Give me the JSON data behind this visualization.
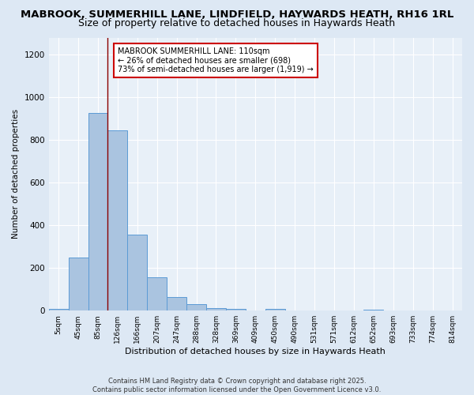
{
  "title": "MABROOK, SUMMERHILL LANE, LINDFIELD, HAYWARDS HEATH, RH16 1RL",
  "subtitle": "Size of property relative to detached houses in Haywards Heath",
  "xlabel": "Distribution of detached houses by size in Haywards Heath",
  "ylabel": "Number of detached properties",
  "bar_labels": [
    "5sqm",
    "45sqm",
    "85sqm",
    "126sqm",
    "166sqm",
    "207sqm",
    "247sqm",
    "288sqm",
    "328sqm",
    "369sqm",
    "409sqm",
    "450sqm",
    "490sqm",
    "531sqm",
    "571sqm",
    "612sqm",
    "652sqm",
    "693sqm",
    "733sqm",
    "774sqm",
    "814sqm"
  ],
  "bar_values": [
    8,
    248,
    928,
    845,
    358,
    158,
    62,
    32,
    13,
    8,
    0,
    10,
    0,
    0,
    0,
    0,
    5,
    0,
    0,
    0,
    0
  ],
  "bar_color": "#aac4e0",
  "bar_edgecolor": "#5b9bd5",
  "vline_x": 2.5,
  "vline_color": "#8b0000",
  "ylim": [
    0,
    1280
  ],
  "yticks": [
    0,
    200,
    400,
    600,
    800,
    1000,
    1200
  ],
  "annotation_text": "MABROOK SUMMERHILL LANE: 110sqm\n← 26% of detached houses are smaller (698)\n73% of semi-detached houses are larger (1,919) →",
  "footnote": "Contains HM Land Registry data © Crown copyright and database right 2025.\nContains public sector information licensed under the Open Government Licence v3.0.",
  "bg_color": "#dde8f4",
  "plot_bg_color": "#e8f0f8",
  "grid_color": "#ffffff",
  "title_fontsize": 9.5,
  "subtitle_fontsize": 9
}
